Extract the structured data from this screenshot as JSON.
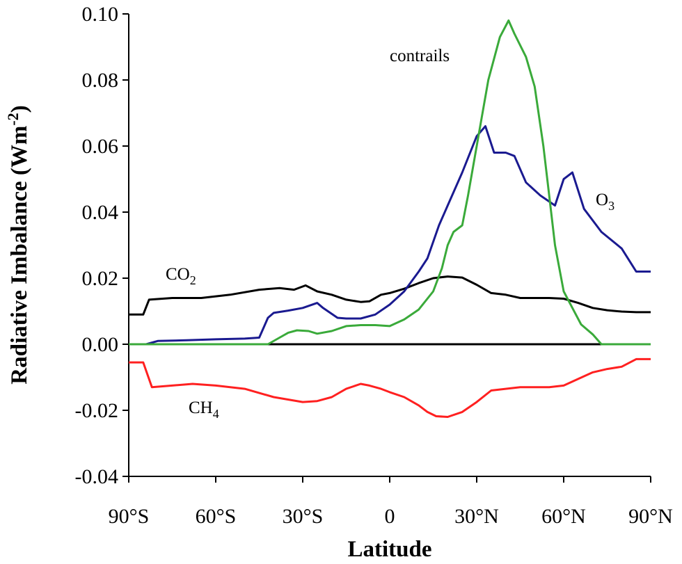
{
  "chart_data": {
    "type": "line",
    "title": "",
    "xlabel": "Latitude",
    "ylabel": "Radiative Imbalance (Wm",
    "ylabel_sup": "-2",
    "ylabel_close": ")",
    "xlim": [
      -90,
      90
    ],
    "ylim": [
      -0.04,
      0.1
    ],
    "x_ticks": [
      -90,
      -60,
      -30,
      0,
      30,
      60,
      90
    ],
    "x_tick_labels": [
      "90°S",
      "60°S",
      "30°S",
      "0",
      "30°N",
      "60°N",
      "90°N"
    ],
    "y_ticks": [
      -0.04,
      -0.02,
      0.0,
      0.02,
      0.04,
      0.06,
      0.08,
      0.1
    ],
    "y_tick_labels": [
      "-0.04",
      "-0.02",
      "0.00",
      "0.02",
      "0.04",
      "0.06",
      "0.08",
      "0.10"
    ],
    "grid": false,
    "zero_line": true,
    "series": [
      {
        "name": "CO2",
        "label_main": "CO",
        "label_sub": "2",
        "color": "#000000",
        "x": [
          -90,
          -85,
          -83,
          -75,
          -65,
          -55,
          -45,
          -38,
          -33,
          -29,
          -25,
          -20,
          -15,
          -10,
          -7,
          -3,
          0,
          5,
          10,
          15,
          20,
          25,
          30,
          35,
          40,
          45,
          50,
          55,
          60,
          65,
          70,
          75,
          80,
          85,
          90
        ],
        "y": [
          0.009,
          0.009,
          0.0135,
          0.014,
          0.014,
          0.015,
          0.0165,
          0.017,
          0.0165,
          0.0178,
          0.016,
          0.015,
          0.0135,
          0.0128,
          0.013,
          0.015,
          0.0155,
          0.0168,
          0.0185,
          0.02,
          0.0205,
          0.0202,
          0.018,
          0.0155,
          0.015,
          0.014,
          0.014,
          0.014,
          0.0138,
          0.0125,
          0.011,
          0.0103,
          0.0099,
          0.0097,
          0.0097
        ]
      },
      {
        "name": "O3",
        "label_main": "O",
        "label_sub": "3",
        "color": "#1a1a90",
        "x": [
          -90,
          -84,
          -80,
          -70,
          -60,
          -50,
          -45,
          -42,
          -40,
          -35,
          -30,
          -25,
          -23,
          -18,
          -15,
          -10,
          -5,
          0,
          5,
          10,
          13,
          17,
          20,
          25,
          30,
          33,
          36,
          40,
          43,
          47,
          52,
          57,
          60,
          63,
          67,
          73,
          80,
          85,
          90
        ],
        "y": [
          0.0,
          0.0,
          0.001,
          0.0012,
          0.0015,
          0.0017,
          0.002,
          0.008,
          0.0095,
          0.0102,
          0.011,
          0.0125,
          0.011,
          0.008,
          0.0078,
          0.0078,
          0.009,
          0.012,
          0.016,
          0.022,
          0.026,
          0.036,
          0.042,
          0.052,
          0.063,
          0.066,
          0.058,
          0.058,
          0.057,
          0.049,
          0.045,
          0.042,
          0.05,
          0.052,
          0.041,
          0.034,
          0.029,
          0.022,
          0.022
        ]
      },
      {
        "name": "contrails",
        "label_main": "contrails",
        "label_sub": "",
        "color": "#3aaa3a",
        "x": [
          -90,
          -42,
          -38,
          -35,
          -32,
          -28,
          -25,
          -20,
          -15,
          -10,
          -5,
          0,
          5,
          10,
          15,
          18,
          20,
          22,
          25,
          27,
          30,
          34,
          38,
          41,
          43,
          47,
          50,
          53,
          55,
          57,
          60,
          63,
          66,
          70,
          73,
          75,
          90
        ],
        "y": [
          0.0,
          0.0,
          0.002,
          0.0035,
          0.0042,
          0.004,
          0.0032,
          0.004,
          0.0055,
          0.0058,
          0.0058,
          0.0055,
          0.0075,
          0.0105,
          0.016,
          0.023,
          0.03,
          0.034,
          0.036,
          0.045,
          0.06,
          0.08,
          0.093,
          0.098,
          0.094,
          0.087,
          0.078,
          0.06,
          0.045,
          0.03,
          0.016,
          0.011,
          0.006,
          0.003,
          0.0,
          0.0,
          0.0
        ]
      },
      {
        "name": "CH4",
        "label_main": "CH",
        "label_sub": "4",
        "color": "#ff2020",
        "x": [
          -90,
          -85,
          -82,
          -75,
          -68,
          -60,
          -50,
          -40,
          -30,
          -25,
          -20,
          -15,
          -10,
          -7,
          -3,
          0,
          5,
          10,
          13,
          16,
          20,
          25,
          30,
          35,
          40,
          45,
          50,
          55,
          60,
          65,
          70,
          75,
          80,
          85,
          90
        ],
        "y": [
          -0.0055,
          -0.0055,
          -0.013,
          -0.0125,
          -0.012,
          -0.0125,
          -0.0135,
          -0.016,
          -0.0175,
          -0.0172,
          -0.016,
          -0.0135,
          -0.012,
          -0.0125,
          -0.0135,
          -0.0145,
          -0.016,
          -0.0185,
          -0.0205,
          -0.0218,
          -0.022,
          -0.0205,
          -0.0175,
          -0.014,
          -0.0135,
          -0.013,
          -0.013,
          -0.013,
          -0.0125,
          -0.0105,
          -0.0085,
          -0.0075,
          -0.0068,
          -0.0045,
          -0.0045
        ]
      }
    ]
  }
}
